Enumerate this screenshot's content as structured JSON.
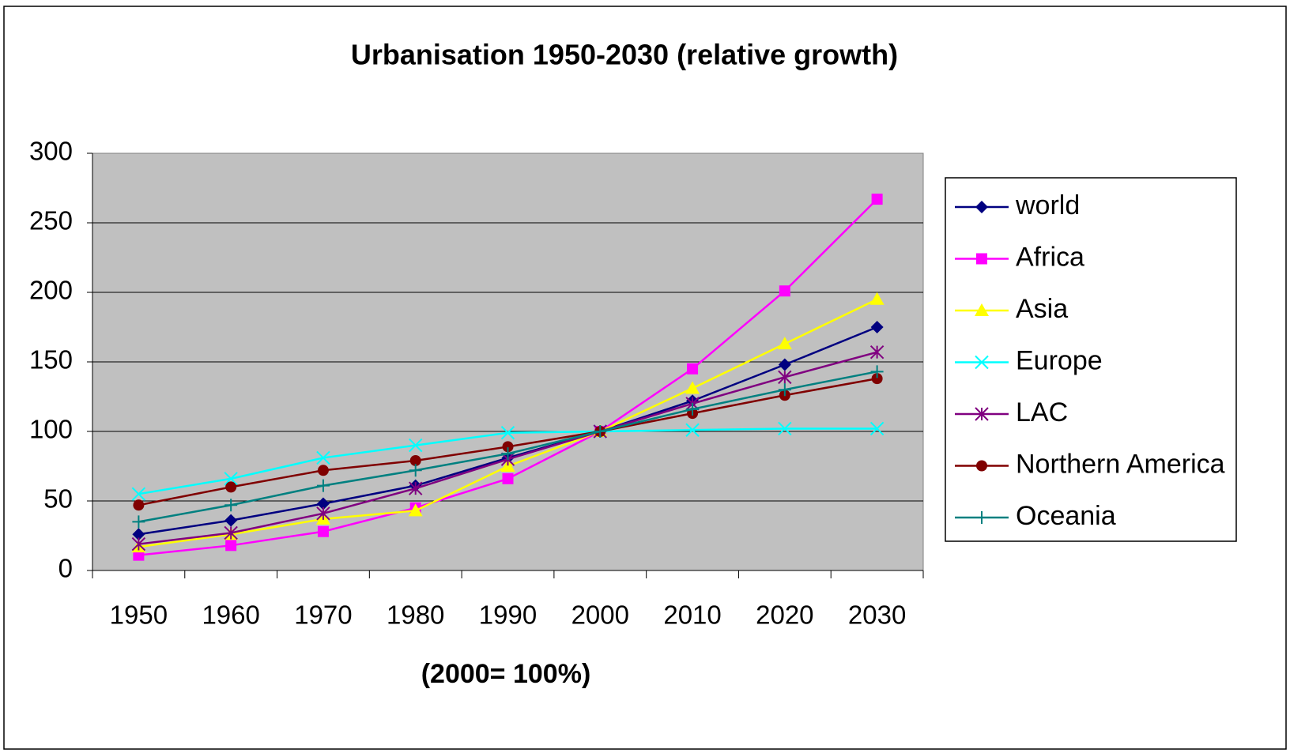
{
  "chart_data": {
    "type": "line",
    "title": "Urbanisation 1950-2030 (relative growth)",
    "x_label": "(2000= 100%)",
    "categories": [
      "1950",
      "1960",
      "1970",
      "1980",
      "1990",
      "2000",
      "2010",
      "2020",
      "2030"
    ],
    "ylim": [
      0,
      300
    ],
    "yticks": [
      0,
      50,
      100,
      150,
      200,
      250,
      300
    ],
    "grid": true,
    "legend": "right",
    "series": [
      {
        "name": "world",
        "color": "#000080",
        "marker": "diamond",
        "values": [
          26,
          36,
          48,
          61,
          81,
          100,
          122,
          148,
          175
        ]
      },
      {
        "name": "Africa",
        "color": "#ff00ff",
        "marker": "square",
        "values": [
          11,
          18,
          28,
          45,
          66,
          100,
          145,
          201,
          267
        ]
      },
      {
        "name": "Asia",
        "color": "#ffff00",
        "marker": "triangle",
        "values": [
          17,
          26,
          37,
          43,
          75,
          100,
          131,
          163,
          195
        ]
      },
      {
        "name": "Europe",
        "color": "#00ffff",
        "marker": "x",
        "values": [
          55,
          66,
          81,
          90,
          99,
          100,
          101,
          102,
          102
        ]
      },
      {
        "name": "LAC",
        "color": "#800080",
        "marker": "star",
        "values": [
          19,
          27,
          41,
          59,
          80,
          100,
          120,
          139,
          157
        ]
      },
      {
        "name": "Northern America",
        "color": "#800000",
        "marker": "circle",
        "values": [
          47,
          60,
          72,
          79,
          89,
          100,
          113,
          126,
          138
        ]
      },
      {
        "name": "Oceania",
        "color": "#008080",
        "marker": "plus",
        "values": [
          35,
          47,
          61,
          72,
          84,
          100,
          116,
          130,
          143
        ]
      }
    ]
  }
}
